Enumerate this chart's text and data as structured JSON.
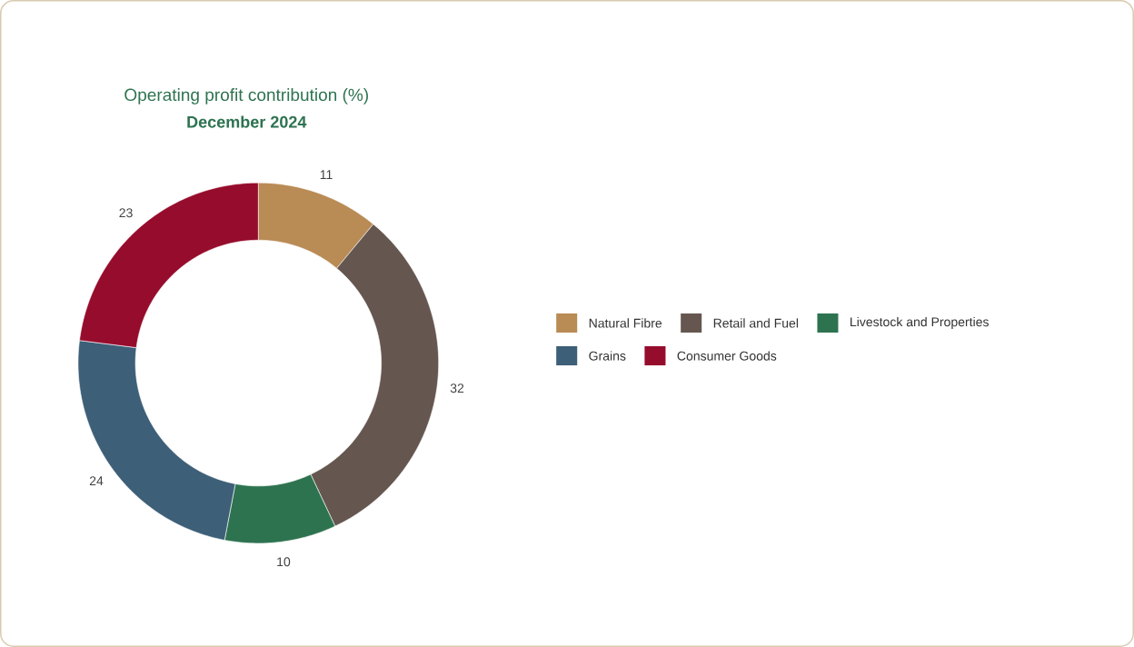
{
  "chart_data": {
    "type": "donut",
    "title": "Operating profit contribution (%)",
    "subtitle": "December 2024",
    "categories": [
      "Natural Fibre",
      "Retail and Fuel",
      "Livestock and Properties",
      "Grains",
      "Consumer Goods"
    ],
    "values": [
      11,
      32,
      10,
      24,
      23
    ],
    "colors": [
      "#b98b55",
      "#655750",
      "#2e7350",
      "#3d5f78",
      "#960c2c"
    ],
    "data_labels": true,
    "legend": "right"
  }
}
